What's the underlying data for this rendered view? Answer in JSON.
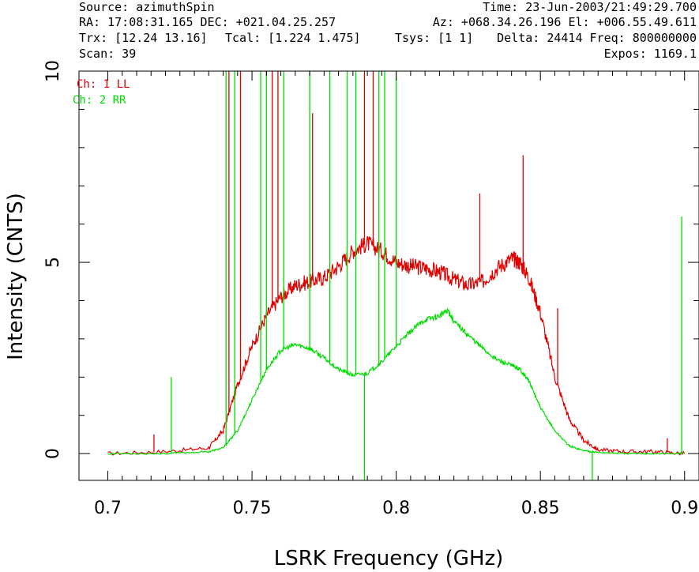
{
  "header": {
    "source": "Source: azimuthSpin",
    "time": "Time: 23-Jun-2003/21:49:29.700",
    "ra_dec": "RA: 17:08:31.165 DEC: +021.04.25.257",
    "az_el": "Az: +068.34.26.196 El: +006.55.49.611",
    "trx": "Trx: [12.24 13.16]",
    "tcal": "Tcal: [1.224 1.475]",
    "tsys": "Tsys: [1 1]",
    "delta_freq": "Delta: 24414 Freq: 800000000",
    "scan": "Scan: 39",
    "expos": "Expos: 1169.1"
  },
  "chart_data": {
    "type": "line",
    "xlabel": "LSRK Frequency (GHz)",
    "ylabel": "Intensity (CNTS)",
    "xlim": [
      0.69,
      0.905
    ],
    "ylim": [
      -0.7,
      10
    ],
    "xticks": [
      "0.7",
      "0.75",
      "0.8",
      "0.85",
      "0.9"
    ],
    "yticks": [
      "0",
      "5",
      "10"
    ],
    "legend_position": "top-left",
    "series": [
      {
        "name": "Ch: 1 LL",
        "color": "#e00000",
        "x": [
          0.7,
          0.72,
          0.735,
          0.74,
          0.745,
          0.75,
          0.755,
          0.76,
          0.765,
          0.77,
          0.775,
          0.78,
          0.785,
          0.79,
          0.795,
          0.8,
          0.805,
          0.81,
          0.815,
          0.82,
          0.825,
          0.83,
          0.835,
          0.84,
          0.843,
          0.846,
          0.85,
          0.855,
          0.86,
          0.865,
          0.87,
          0.88,
          0.89,
          0.9
        ],
        "values": [
          0.0,
          0.05,
          0.15,
          0.6,
          1.8,
          2.8,
          3.6,
          4.1,
          4.4,
          4.5,
          4.6,
          4.9,
          5.3,
          5.5,
          5.3,
          5.0,
          4.9,
          4.85,
          4.75,
          4.55,
          4.4,
          4.5,
          4.85,
          5.1,
          5.0,
          4.6,
          3.7,
          2.0,
          0.9,
          0.35,
          0.1,
          0.05,
          0.05,
          0.0
        ],
        "spikes": [
          {
            "x": 0.716,
            "y": 0.5
          },
          {
            "x": 0.742,
            "y": 10.0
          },
          {
            "x": 0.746,
            "y": 10.0
          },
          {
            "x": 0.757,
            "y": 10.0
          },
          {
            "x": 0.759,
            "y": 10.0
          },
          {
            "x": 0.771,
            "y": 8.9
          },
          {
            "x": 0.789,
            "y": 10.0
          },
          {
            "x": 0.792,
            "y": 10.0
          },
          {
            "x": 0.829,
            "y": 6.8
          },
          {
            "x": 0.844,
            "y": 7.8
          },
          {
            "x": 0.856,
            "y": 3.8
          },
          {
            "x": 0.894,
            "y": 0.4
          }
        ]
      },
      {
        "name": "Ch: 2 RR",
        "color": "#00dd00",
        "x": [
          0.7,
          0.72,
          0.735,
          0.74,
          0.745,
          0.75,
          0.755,
          0.76,
          0.765,
          0.77,
          0.775,
          0.78,
          0.785,
          0.79,
          0.795,
          0.8,
          0.805,
          0.81,
          0.815,
          0.818,
          0.82,
          0.825,
          0.83,
          0.835,
          0.84,
          0.843,
          0.846,
          0.85,
          0.855,
          0.86,
          0.865,
          0.87,
          0.88,
          0.89,
          0.9
        ],
        "values": [
          0.0,
          0.0,
          0.05,
          0.15,
          0.6,
          1.4,
          2.2,
          2.7,
          2.85,
          2.75,
          2.5,
          2.2,
          2.05,
          2.1,
          2.4,
          2.8,
          3.2,
          3.5,
          3.6,
          3.75,
          3.45,
          3.1,
          2.75,
          2.45,
          2.3,
          2.2,
          1.9,
          1.2,
          0.6,
          0.2,
          0.08,
          0.03,
          0.0,
          0.0,
          0.0
        ],
        "spikes": [
          {
            "x": 0.722,
            "y": 2.0
          },
          {
            "x": 0.741,
            "y": 10.0
          },
          {
            "x": 0.744,
            "y": 10.0
          },
          {
            "x": 0.753,
            "y": 10.0
          },
          {
            "x": 0.755,
            "y": 10.0
          },
          {
            "x": 0.761,
            "y": 10.0
          },
          {
            "x": 0.77,
            "y": 10.0
          },
          {
            "x": 0.777,
            "y": 10.0
          },
          {
            "x": 0.783,
            "y": 10.0
          },
          {
            "x": 0.786,
            "y": 10.0
          },
          {
            "x": 0.789,
            "y": -0.7
          },
          {
            "x": 0.794,
            "y": 10.0
          },
          {
            "x": 0.796,
            "y": 10.0
          },
          {
            "x": 0.8,
            "y": 10.0
          },
          {
            "x": 0.868,
            "y": -0.7
          },
          {
            "x": 0.899,
            "y": 6.2
          }
        ]
      }
    ]
  }
}
